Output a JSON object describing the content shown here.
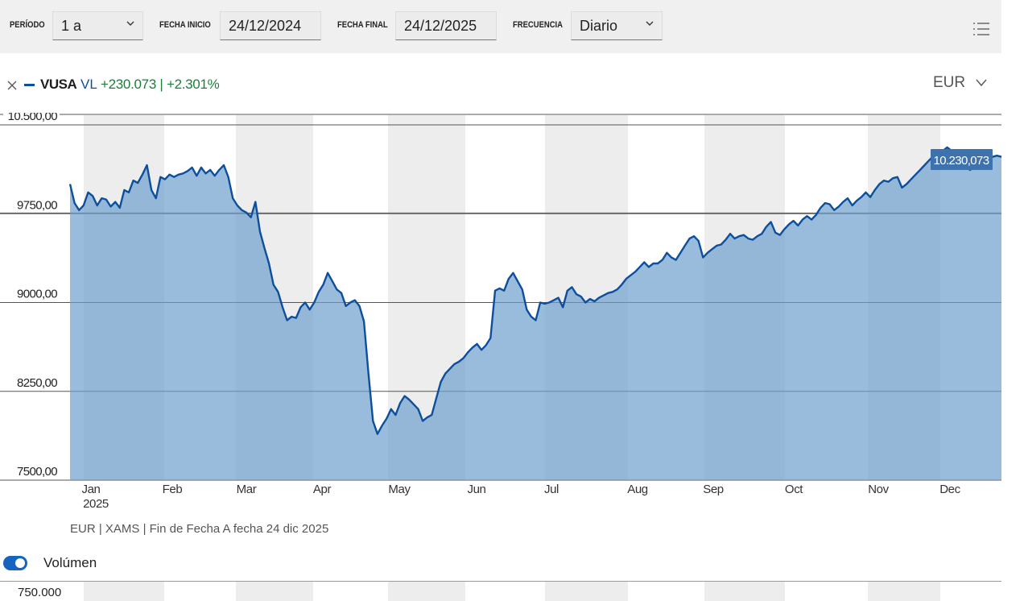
{
  "toolbar": {
    "periodo_label": "PERÍODO",
    "periodo_value": "1 a",
    "fecha_inicio_label": "FECHA INICIO",
    "fecha_inicio_value": "24/12/2024",
    "fecha_final_label": "FECHA FINAL",
    "fecha_final_value": "24/12/2025",
    "frecuencia_label": "FRECUENCIA",
    "frecuencia_value": "Diario",
    "menu_icon": "list-icon"
  },
  "legend": {
    "close_icon": "close-icon",
    "ticker": "VUSA",
    "metric": "VL",
    "change": "+230.073 | +2.301%",
    "currency": "EUR",
    "currency_icon": "chevron-down-icon",
    "series_color": "#0d4f9c",
    "positive_color": "#1a7f37"
  },
  "chart_data": {
    "type": "area",
    "title": "",
    "ylabel": "",
    "ylim": [
      7500,
      10500
    ],
    "yticks": [
      "10.500,00",
      "9750,00",
      "9000,00",
      "8250,00",
      "7500,00"
    ],
    "months": [
      "Jan",
      "Feb",
      "Mar",
      "Apr",
      "May",
      "Jun",
      "Jul",
      "Aug",
      "Sep",
      "Oct",
      "Nov",
      "Dec"
    ],
    "year_label": "2025",
    "last_value_label": "10.230,073",
    "reference_line": 9755,
    "series": [
      {
        "values": [
          10000,
          9840,
          9780,
          9820,
          9930,
          9900,
          9820,
          9880,
          9870,
          9810,
          9850,
          9800,
          9950,
          9930,
          10030,
          10010,
          10080,
          10160,
          9950,
          9880,
          10060,
          10040,
          10080,
          10060,
          10080,
          10090,
          10110,
          10140,
          10070,
          10140,
          10090,
          10120,
          10070,
          10120,
          10160,
          10060,
          9880,
          9820,
          9780,
          9760,
          9720,
          9850,
          9600,
          9460,
          9330,
          9150,
          9090,
          8960,
          8850,
          8880,
          8870,
          8960,
          9000,
          8940,
          9000,
          9090,
          9150,
          9250,
          9180,
          9110,
          9080,
          8970,
          9000,
          9020,
          8970,
          8840,
          8400,
          8000,
          7890,
          7960,
          8020,
          8100,
          8050,
          8150,
          8210,
          8180,
          8140,
          8100,
          8000,
          8030,
          8050,
          8190,
          8330,
          8400,
          8440,
          8480,
          8500,
          8530,
          8580,
          8620,
          8650,
          8600,
          8640,
          8700,
          9100,
          9120,
          9100,
          9200,
          9250,
          9180,
          9110,
          8940,
          8880,
          8850,
          9000,
          8990,
          9000,
          9020,
          9040,
          8960,
          9100,
          9130,
          9070,
          9050,
          9000,
          9030,
          9010,
          9040,
          9060,
          9080,
          9090,
          9110,
          9150,
          9200,
          9230,
          9260,
          9300,
          9340,
          9300,
          9330,
          9330,
          9360,
          9420,
          9380,
          9360,
          9420,
          9480,
          9540,
          9560,
          9520,
          9380,
          9420,
          9450,
          9480,
          9490,
          9530,
          9580,
          9540,
          9560,
          9570,
          9540,
          9530,
          9560,
          9580,
          9640,
          9680,
          9590,
          9570,
          9620,
          9660,
          9690,
          9650,
          9700,
          9730,
          9700,
          9740,
          9800,
          9840,
          9830,
          9780,
          9810,
          9850,
          9880,
          9820,
          9860,
          9890,
          9930,
          9890,
          9950,
          10000,
          10030,
          10020,
          10050,
          10060,
          9970,
          10000,
          10040,
          10080,
          10120,
          10160,
          10200,
          10240,
          10270,
          10280,
          10310,
          10280,
          10240,
          10200,
          10180,
          10120,
          10140,
          10170,
          10210,
          10250,
          10230,
          10240,
          10230
        ]
      }
    ]
  },
  "footer": {
    "source_note": "EUR | XAMS | Fin de Fecha A fecha 24 dic 2025",
    "volume_toggle_label": "Volúmen",
    "volume_tick": "750.000"
  }
}
